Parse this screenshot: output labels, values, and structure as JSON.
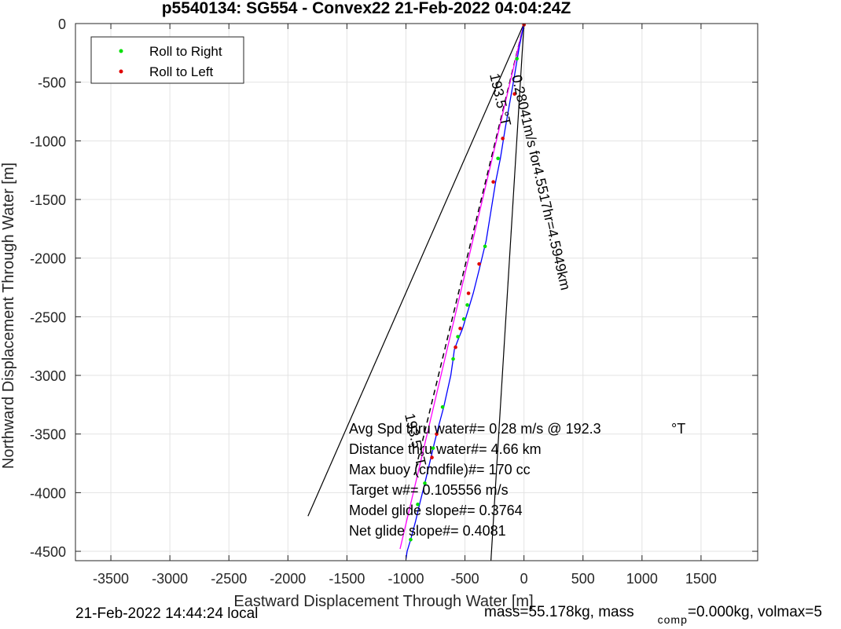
{
  "chart_data": {
    "type": "scatter",
    "title": "p5540134: SG554 - Convex22 21-Feb-2022 04:04:24Z",
    "xlabel": "Eastward Displacement Through Water [m]",
    "ylabel": "Northward Displacement Through Water [m]",
    "xlim": [
      -3800,
      1980
    ],
    "ylim": [
      -4580,
      0
    ],
    "xticks": [
      -3500,
      -3000,
      -2500,
      -2000,
      -1500,
      -1000,
      -500,
      0,
      500,
      1000,
      1500
    ],
    "yticks": [
      0,
      -500,
      -1000,
      -1500,
      -2000,
      -2500,
      -3000,
      -3500,
      -4000,
      -4500
    ],
    "grid": true,
    "legend": {
      "position": "top-left",
      "entries": [
        {
          "label": "Roll to Right",
          "color": "#00e000"
        },
        {
          "label": "Roll to Left",
          "color": "#e00000"
        }
      ]
    },
    "colors": {
      "track": "#0000ff",
      "fit_line": "#ff00ff",
      "cone": "#000000",
      "right_marker": "#00e000",
      "left_marker": "#e00000"
    },
    "cone_lines": [
      {
        "x": [
          0,
          -1830
        ],
        "y": [
          0,
          -4200
        ]
      },
      {
        "x": [
          0,
          -280
        ],
        "y": [
          0,
          -4580
        ]
      }
    ],
    "fit_line": {
      "x": [
        0,
        -1050
      ],
      "y": [
        0,
        -4480
      ]
    },
    "dashed_line": {
      "x": [
        0,
        -930
      ],
      "y": [
        0,
        -3850
      ]
    },
    "track": {
      "x": [
        0,
        -40,
        -90,
        -160,
        -200,
        -240,
        -280,
        -320,
        -380,
        -430,
        -460,
        -490,
        -520,
        -560,
        -590,
        -600,
        -620,
        -680,
        -720,
        -760,
        -800,
        -840,
        -880,
        -920,
        -960,
        -990,
        -1000
      ],
      "y": [
        0,
        -200,
        -500,
        -900,
        -1150,
        -1350,
        -1600,
        -1850,
        -2100,
        -2300,
        -2400,
        -2500,
        -2600,
        -2700,
        -2780,
        -2860,
        -3000,
        -3270,
        -3420,
        -3580,
        -3750,
        -3920,
        -4080,
        -4250,
        -4400,
        -4500,
        -4570
      ]
    },
    "roll_right": {
      "x": [
        -60,
        -220,
        -330,
        -480,
        -510,
        -560,
        -600,
        -690,
        -770,
        -840,
        -900,
        -960
      ],
      "y": [
        -300,
        -1150,
        -1900,
        -2400,
        -2520,
        -2670,
        -2860,
        -3270,
        -3620,
        -3920,
        -4100,
        -4400
      ]
    },
    "roll_left": {
      "x": [
        0,
        -80,
        -180,
        -260,
        -380,
        -470,
        -540,
        -580,
        -740,
        -780
      ],
      "y": [
        -10,
        -600,
        -980,
        -1350,
        -2050,
        -2300,
        -2600,
        -2760,
        -3500,
        -3700
      ]
    },
    "annotations": {
      "heading_top": "193.5 °T",
      "speed_text": "0.28041m/s for4.5517hr=4.5949km",
      "heading_bottom": "193.5 °T",
      "stats": [
        "Avg Spd thru water#=  0.28 m/s @ 192.3",
        "Distance thru water#=  4.66 km",
        "Max buoy (cmdfile)#= 170 cc",
        "Target w#= 0.105556 m/s",
        "Model glide slope#= 0.3764",
        "Net glide slope#= 0.4081"
      ],
      "stats_unit": "°T"
    }
  },
  "footer": {
    "local_time": "21-Feb-2022 14:44:24 local",
    "mass_prefix": "mass=55.178kg, mass",
    "comp_sub": "comp",
    "mass_suffix": "=0.000kg, volmax=5"
  }
}
